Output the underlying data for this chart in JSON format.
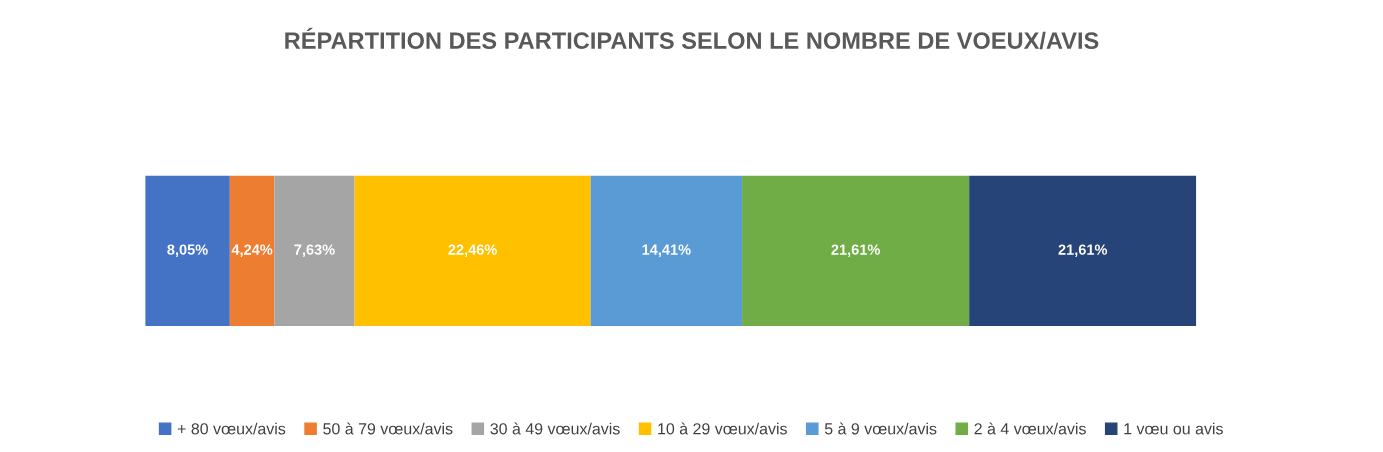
{
  "chart_data": {
    "type": "bar",
    "title": "RÉPARTITION DES PARTICIPANTS SELON LE NOMBRE DE VOEUX/AVIS",
    "orientation": "horizontal",
    "stacked": true,
    "categories": [
      null
    ],
    "legend": "bottom",
    "tick_labels": false,
    "series": [
      {
        "name": "+ 80 vœux/avis",
        "color": "#4472c4",
        "values": [
          8.05
        ],
        "value_labels": [
          "8,05%"
        ]
      },
      {
        "name": "50 à 79 vœux/avis",
        "color": "#ed7d31",
        "values": [
          4.24
        ],
        "value_labels": [
          "4,24%"
        ]
      },
      {
        "name": "30 à 49 vœux/avis",
        "color": "#a5a5a5",
        "values": [
          7.63
        ],
        "value_labels": [
          "7,63%"
        ]
      },
      {
        "name": "10 à 29 vœux/avis",
        "color": "#ffc000",
        "values": [
          22.46
        ],
        "value_labels": [
          "22,46%"
        ]
      },
      {
        "name": "5 à 9 vœux/avis",
        "color": "#5b9bd5",
        "values": [
          14.41
        ],
        "value_labels": [
          "14,41%"
        ]
      },
      {
        "name": "2 à 4 vœux/avis",
        "color": "#70ad47",
        "values": [
          21.61
        ],
        "value_labels": [
          "21,61%"
        ]
      },
      {
        "name": "1 vœu ou avis",
        "color": "#264478",
        "values": [
          21.61
        ],
        "value_labels": [
          "21,61%"
        ]
      }
    ]
  }
}
